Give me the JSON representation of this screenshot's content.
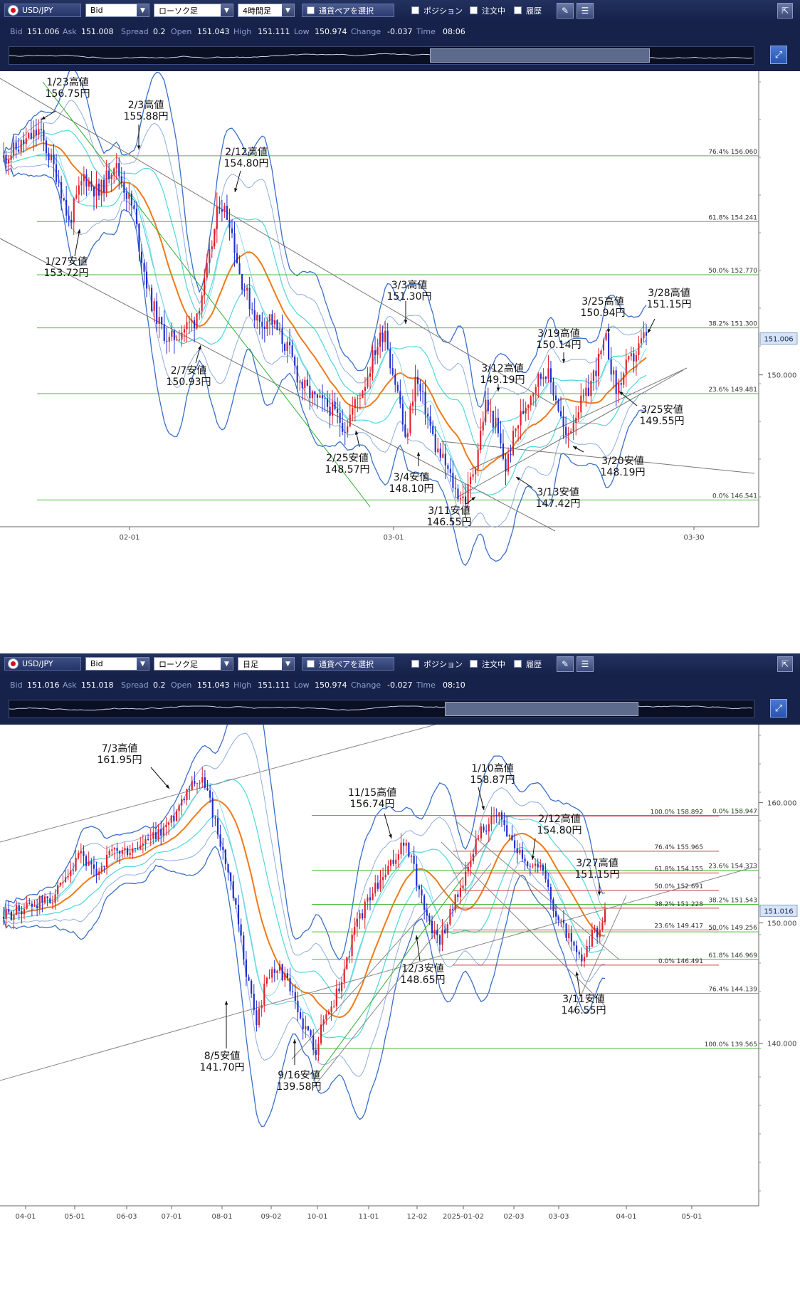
{
  "panels": [
    {
      "id": "p1",
      "toolbar": {
        "symbol": "USD/JPY",
        "price_type": "Bid",
        "chart_type": "ローソク足",
        "timeframe": "4時間足",
        "pair_select": "通貨ペアを選択",
        "position": "ポジション",
        "orders": "注文中",
        "history": "履歴"
      },
      "quote": {
        "bid_label": "Bid",
        "bid": "151.006",
        "ask_label": "Ask",
        "ask": "151.008",
        "spread_label": "Spread",
        "spread": "0.2",
        "open_label": "Open",
        "open": "151.043",
        "high_label": "High",
        "high": "151.111",
        "low_label": "Low",
        "low": "150.974",
        "change_label": "Change",
        "change": "-0.037",
        "time_label": "Time",
        "time": "08:06"
      },
      "scroll_thumb": [
        0.565,
        0.86
      ],
      "chart_data": {
        "type": "candlestick",
        "x_ticks": [
          "02-01",
          "03-01",
          "03-30"
        ],
        "y_ticks": [
          "150.000"
        ],
        "current_price": "151.006",
        "fib_levels": [
          {
            "pct": "76.4%",
            "value": "156.060"
          },
          {
            "pct": "61.8%",
            "value": "154.241"
          },
          {
            "pct": "50.0%",
            "value": "152.770"
          },
          {
            "pct": "38.2%",
            "value": "151.300"
          },
          {
            "pct": "23.6%",
            "value": "149.481"
          },
          {
            "pct": "0.0%",
            "value": "146.541"
          }
        ],
        "annotations": [
          {
            "date": "1/23高値",
            "price": "156.75円"
          },
          {
            "date": "2/3高値",
            "price": "155.88円"
          },
          {
            "date": "2/12高値",
            "price": "154.80円"
          },
          {
            "date": "1/27安値",
            "price": "153.72円"
          },
          {
            "date": "2/7安値",
            "price": "150.93円"
          },
          {
            "date": "3/3高値",
            "price": "151.30円"
          },
          {
            "date": "3/25高値",
            "price": "150.94円"
          },
          {
            "date": "3/28高値",
            "price": "151.15円"
          },
          {
            "date": "3/19高値",
            "price": "150.14円"
          },
          {
            "date": "3/12高値",
            "price": "149.19円"
          },
          {
            "date": "3/25安値",
            "price": "149.55円"
          },
          {
            "date": "2/25安値",
            "price": "148.57円"
          },
          {
            "date": "3/20安値",
            "price": "148.19円"
          },
          {
            "date": "3/4安値",
            "price": "148.10円"
          },
          {
            "date": "3/13安値",
            "price": "147.42円"
          },
          {
            "date": "3/11安値",
            "price": "146.55円"
          }
        ],
        "path": [
          [
            0,
            156.0
          ],
          [
            3,
            156.3
          ],
          [
            7,
            156.75
          ],
          [
            11,
            155.4
          ],
          [
            13,
            154.2
          ],
          [
            16,
            155.5
          ],
          [
            19,
            155.0
          ],
          [
            22,
            155.88
          ],
          [
            24,
            155.2
          ],
          [
            26,
            154.5
          ],
          [
            27,
            153.6
          ],
          [
            29,
            152.2
          ],
          [
            31,
            151.4
          ],
          [
            33,
            150.93
          ],
          [
            36,
            151.3
          ],
          [
            38,
            151.5
          ],
          [
            40,
            152.5
          ],
          [
            42,
            154.0
          ],
          [
            43,
            154.8
          ],
          [
            45,
            154.3
          ],
          [
            47,
            152.8
          ],
          [
            49,
            152.0
          ],
          [
            51,
            151.4
          ],
          [
            53,
            151.6
          ],
          [
            55,
            151.1
          ],
          [
            57,
            150.6
          ],
          [
            59,
            149.8
          ],
          [
            62,
            149.3
          ],
          [
            65,
            149.1
          ],
          [
            68,
            148.57
          ],
          [
            70,
            149.2
          ],
          [
            72,
            149.8
          ],
          [
            74,
            150.7
          ],
          [
            76,
            151.3
          ],
          [
            77,
            150.4
          ],
          [
            79,
            149.2
          ],
          [
            80,
            148.1
          ],
          [
            82,
            149.9
          ],
          [
            84,
            149.1
          ],
          [
            86,
            148.0
          ],
          [
            88,
            147.5
          ],
          [
            90,
            146.8
          ],
          [
            92,
            146.55
          ],
          [
            94,
            147.6
          ],
          [
            96,
            149.19
          ],
          [
            98,
            148.6
          ],
          [
            100,
            147.42
          ],
          [
            102,
            148.5
          ],
          [
            104,
            149.2
          ],
          [
            106,
            149.8
          ],
          [
            108,
            150.14
          ],
          [
            110,
            149.4
          ],
          [
            112,
            148.19
          ],
          [
            114,
            149.0
          ],
          [
            116,
            149.4
          ],
          [
            118,
            150.2
          ],
          [
            120,
            150.94
          ],
          [
            122,
            149.55
          ],
          [
            124,
            150.2
          ],
          [
            126,
            150.6
          ],
          [
            128,
            151.15
          ]
        ]
      }
    },
    {
      "id": "p2",
      "toolbar": {
        "symbol": "USD/JPY",
        "price_type": "Bid",
        "chart_type": "ローソク足",
        "timeframe": "日足",
        "pair_select": "通貨ペアを選択",
        "position": "ポジション",
        "orders": "注文中",
        "history": "履歴"
      },
      "quote": {
        "bid_label": "Bid",
        "bid": "151.016",
        "ask_label": "Ask",
        "ask": "151.018",
        "spread_label": "Spread",
        "spread": "0.2",
        "open_label": "Open",
        "open": "151.043",
        "high_label": "High",
        "high": "151.111",
        "low_label": "Low",
        "low": "150.974",
        "change_label": "Change",
        "change": "-0.027",
        "time_label": "Time",
        "time": "08:10"
      },
      "scroll_thumb": [
        0.585,
        0.845
      ],
      "chart_data": {
        "type": "candlestick",
        "x_ticks": [
          "04-01",
          "05-01",
          "06-03",
          "07-01",
          "08-01",
          "09-02",
          "10-01",
          "11-01",
          "12-02",
          "2025-01-02",
          "02-03",
          "03-03",
          "04-01",
          "05-01"
        ],
        "y_ticks": [
          "160.000",
          "150.000",
          "140.000"
        ],
        "current_price": "151.016",
        "fib_left": [
          {
            "pct": "0.0%",
            "value": "158.947"
          },
          {
            "pct": "23.6%",
            "value": "154.373"
          },
          {
            "pct": "38.2%",
            "value": "151.543"
          },
          {
            "pct": "50.0%",
            "value": "149.256"
          },
          {
            "pct": "61.8%",
            "value": "146.969"
          },
          {
            "pct": "76.4%",
            "value": "144.139"
          },
          {
            "pct": "100.0%",
            "value": "139.565"
          }
        ],
        "fib_right": [
          {
            "pct": "100.0%",
            "value": "158.892"
          },
          {
            "pct": "76.4%",
            "value": "155.965"
          },
          {
            "pct": "61.8%",
            "value": "154.155"
          },
          {
            "pct": "50.0%",
            "value": "152.691"
          },
          {
            "pct": "38.2%",
            "value": "151.228"
          },
          {
            "pct": "23.6%",
            "value": "149.417"
          },
          {
            "pct": "0.0%",
            "value": "146.491"
          }
        ],
        "annotations": [
          {
            "date": "7/3高値",
            "price": "161.95円"
          },
          {
            "date": "1/10高値",
            "price": "158.87円"
          },
          {
            "date": "11/15高値",
            "price": "156.74円"
          },
          {
            "date": "2/12高値",
            "price": "154.80円"
          },
          {
            "date": "3/27高値",
            "price": "151.15円"
          },
          {
            "date": "12/3安値",
            "price": "148.65円"
          },
          {
            "date": "3/11安値",
            "price": "146.55円"
          },
          {
            "date": "8/5安値",
            "price": "141.70円"
          },
          {
            "date": "9/16安値",
            "price": "139.58円"
          }
        ],
        "path": [
          [
            0,
            150.5
          ],
          [
            10,
            151.5
          ],
          [
            18,
            152.0
          ],
          [
            25,
            153.5
          ],
          [
            30,
            155.8
          ],
          [
            35,
            154.0
          ],
          [
            42,
            155.8
          ],
          [
            50,
            156.0
          ],
          [
            58,
            157.0
          ],
          [
            65,
            158.5
          ],
          [
            71,
            161.2
          ],
          [
            74,
            161.95
          ],
          [
            78,
            161.6
          ],
          [
            82,
            158.5
          ],
          [
            86,
            155.0
          ],
          [
            90,
            151.0
          ],
          [
            94,
            146.0
          ],
          [
            98,
            141.7
          ],
          [
            102,
            145.5
          ],
          [
            106,
            146.5
          ],
          [
            110,
            145.0
          ],
          [
            114,
            142.5
          ],
          [
            118,
            140.8
          ],
          [
            121,
            139.58
          ],
          [
            124,
            142.0
          ],
          [
            128,
            143.5
          ],
          [
            132,
            146.0
          ],
          [
            136,
            149.5
          ],
          [
            142,
            152.3
          ],
          [
            148,
            154.0
          ],
          [
            152,
            155.5
          ],
          [
            155,
            156.74
          ],
          [
            158,
            155.2
          ],
          [
            162,
            152.0
          ],
          [
            166,
            149.5
          ],
          [
            169,
            148.65
          ],
          [
            172,
            150.2
          ],
          [
            176,
            152.6
          ],
          [
            180,
            154.3
          ],
          [
            184,
            157.5
          ],
          [
            188,
            158.2
          ],
          [
            192,
            158.87
          ],
          [
            196,
            157.2
          ],
          [
            200,
            156.0
          ],
          [
            204,
            154.8
          ],
          [
            207,
            155.0
          ],
          [
            210,
            153.5
          ],
          [
            214,
            150.8
          ],
          [
            218,
            149.2
          ],
          [
            220,
            148.3
          ],
          [
            222,
            147.3
          ],
          [
            224,
            146.55
          ],
          [
            226,
            147.6
          ],
          [
            228,
            149.2
          ],
          [
            230,
            149.0
          ],
          [
            233,
            151.15
          ]
        ]
      }
    }
  ]
}
